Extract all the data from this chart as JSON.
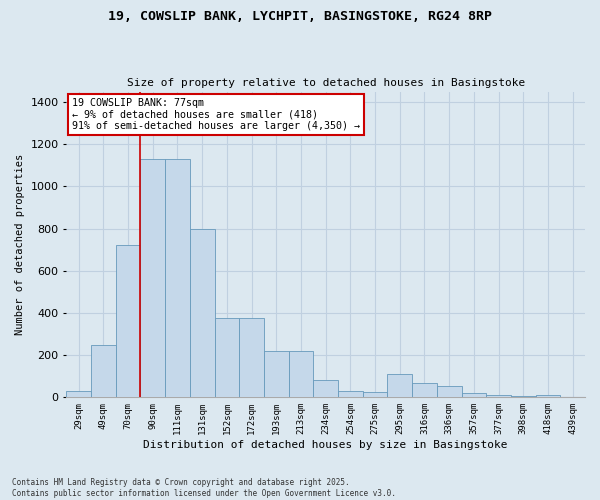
{
  "title1": "19, COWSLIP BANK, LYCHPIT, BASINGSTOKE, RG24 8RP",
  "title2": "Size of property relative to detached houses in Basingstoke",
  "xlabel": "Distribution of detached houses by size in Basingstoke",
  "ylabel": "Number of detached properties",
  "footnote": "Contains HM Land Registry data © Crown copyright and database right 2025.\nContains public sector information licensed under the Open Government Licence v3.0.",
  "bar_color": "#c5d8ea",
  "bar_edge_color": "#6699bb",
  "grid_color": "#c0d0e0",
  "background_color": "#dce8f0",
  "annotation_box_color": "#cc0000",
  "vline_color": "#cc0000",
  "categories": [
    "29sqm",
    "49sqm",
    "70sqm",
    "90sqm",
    "111sqm",
    "131sqm",
    "152sqm",
    "172sqm",
    "193sqm",
    "213sqm",
    "234sqm",
    "254sqm",
    "275sqm",
    "295sqm",
    "316sqm",
    "336sqm",
    "357sqm",
    "377sqm",
    "398sqm",
    "418sqm",
    "439sqm"
  ],
  "values": [
    30,
    250,
    720,
    1130,
    1130,
    800,
    375,
    375,
    220,
    220,
    80,
    30,
    25,
    110,
    70,
    55,
    20,
    10,
    5,
    10,
    0
  ],
  "vline_x": 2.5,
  "annotation_text": "19 COWSLIP BANK: 77sqm\n← 9% of detached houses are smaller (418)\n91% of semi-detached houses are larger (4,350) →",
  "ylim": [
    0,
    1450
  ],
  "yticks": [
    0,
    200,
    400,
    600,
    800,
    1000,
    1200,
    1400
  ]
}
